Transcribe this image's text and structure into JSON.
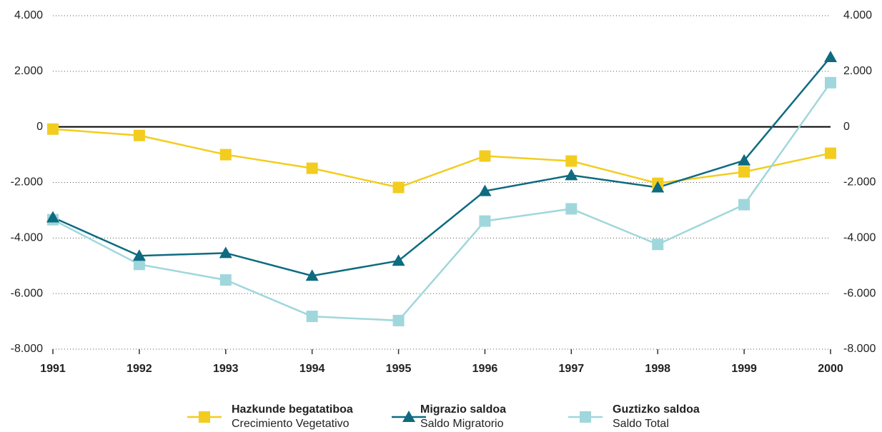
{
  "chart_data": {
    "type": "line",
    "categories": [
      "1991",
      "1992",
      "1993",
      "1994",
      "1995",
      "1996",
      "1997",
      "1998",
      "1999",
      "2000"
    ],
    "series": [
      {
        "name": "Hazkunde begatatiboa",
        "subname": "Crecimiento Vegetativo",
        "color": "#f2cd1f",
        "marker": "square",
        "values": [
          -80,
          -310,
          -1000,
          -1490,
          -2180,
          -1050,
          -1230,
          -2030,
          -1620,
          -950
        ]
      },
      {
        "name": "Migrazio saldoa",
        "subname": "Saldo Migratorio",
        "color": "#0e6b80",
        "marker": "triangle",
        "values": [
          -3260,
          -4640,
          -4540,
          -5360,
          -4820,
          -2310,
          -1740,
          -2180,
          -1210,
          2510
        ]
      },
      {
        "name": "Guztizko saldoa",
        "subname": "Saldo Total",
        "color": "#9fd7dc",
        "marker": "square",
        "values": [
          -3340,
          -4950,
          -5510,
          -6820,
          -6970,
          -3390,
          -2950,
          -4230,
          -2800,
          1590
        ]
      }
    ],
    "ylim": [
      -8000,
      4000
    ],
    "yticks": [
      {
        "value": -8000,
        "label": "-8.000"
      },
      {
        "value": -6000,
        "label": "-6.000"
      },
      {
        "value": -4000,
        "label": "-4.000"
      },
      {
        "value": -2000,
        "label": "-2.000"
      },
      0,
      {
        "value": 2000,
        "label": "2.000"
      },
      {
        "value": 4000,
        "label": "4.000"
      }
    ],
    "grid": true,
    "legend": "bottom"
  }
}
